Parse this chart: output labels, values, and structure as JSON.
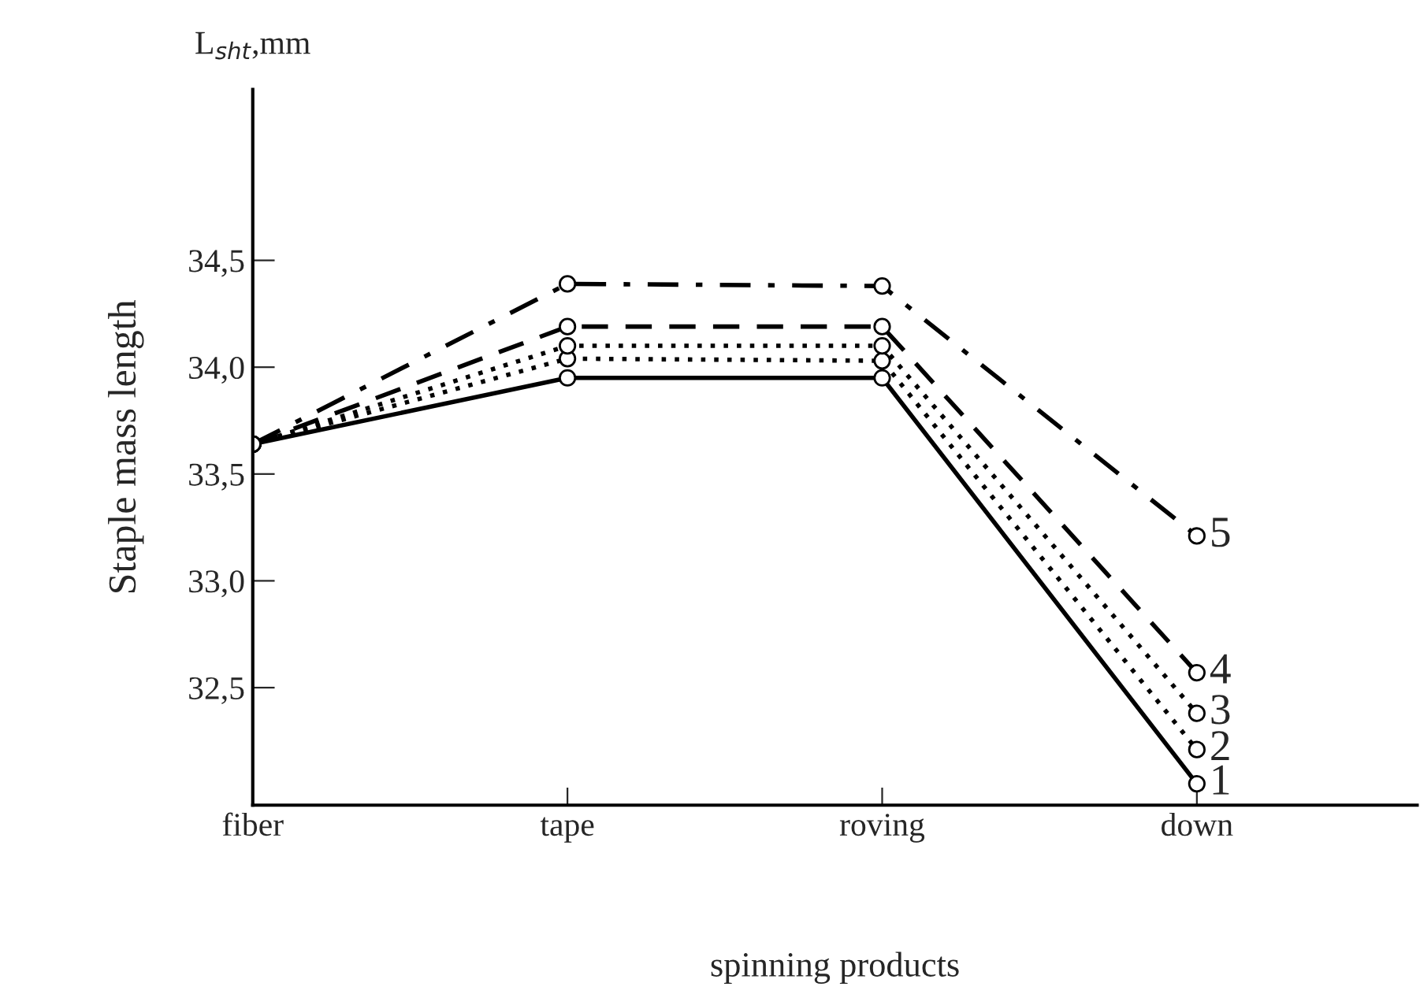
{
  "chart_data": {
    "type": "line",
    "xlabel": "spinning products",
    "ylabel": "Staple mass length",
    "annotations": [
      "L$_{sht}$,mm"
    ],
    "categories": [
      "fiber",
      "tape",
      "roving",
      "down"
    ],
    "ylim": [
      31.95,
      35.3
    ],
    "yticks": [
      {
        "value": 32.5,
        "label": "32,5"
      },
      {
        "value": 33.0,
        "label": "33,0"
      },
      {
        "value": 33.5,
        "label": "33,5"
      },
      {
        "value": 34.0,
        "label": "34,0"
      },
      {
        "value": 34.5,
        "label": "34,5"
      }
    ],
    "marker": "circle",
    "grid": false,
    "legend": false,
    "series": [
      {
        "name": "1",
        "color": "#000000",
        "line_style": "solid",
        "values": [
          33.64,
          33.95,
          33.95,
          32.05
        ]
      },
      {
        "name": "2",
        "color": "#000000",
        "line_style": "dotted",
        "values": [
          33.64,
          34.04,
          34.03,
          32.21
        ]
      },
      {
        "name": "3",
        "color": "#000000",
        "line_style": "dotted",
        "values": [
          33.64,
          34.1,
          34.1,
          32.38
        ]
      },
      {
        "name": "4",
        "color": "#000000",
        "line_style": "dashed",
        "values": [
          33.64,
          34.19,
          34.19,
          32.57
        ]
      },
      {
        "name": "5",
        "color": "#000000",
        "line_style": "dashdot",
        "values": [
          33.64,
          34.39,
          34.38,
          33.21
        ]
      }
    ]
  }
}
